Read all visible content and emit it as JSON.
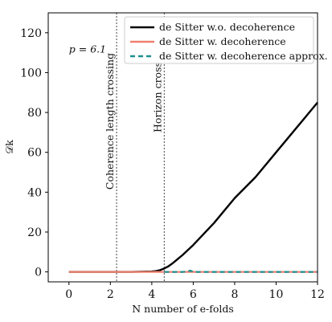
{
  "chart_data": {
    "type": "line",
    "xlabel": "N number of e-folds",
    "ylabel": "𝒟k",
    "xlim": [
      -1,
      12
    ],
    "ylim": [
      -5,
      130
    ],
    "xticks": [
      0,
      2,
      4,
      6,
      8,
      10,
      12
    ],
    "yticks": [
      0,
      20,
      40,
      60,
      80,
      100,
      120
    ],
    "grid": false,
    "legend_position": "top-right",
    "annotations": [
      {
        "text": "p = 6.1",
        "x": 0,
        "y": 110
      }
    ],
    "vertical_lines": [
      {
        "label": "Coherence length crossing",
        "x": 2.3
      },
      {
        "label": "Horizon crossing",
        "x": 4.6
      }
    ],
    "series": [
      {
        "name": "de Sitter w.o. decoherence",
        "color": "#000000",
        "style": "solid",
        "x": [
          0,
          1,
          2,
          3,
          4,
          4.2,
          4.4,
          4.6,
          4.8,
          5.0,
          5.2,
          5.5,
          6,
          7,
          8,
          9,
          10,
          11,
          12
        ],
        "y": [
          0,
          0,
          0,
          0,
          0.2,
          0.4,
          0.9,
          1.7,
          2.8,
          4.3,
          6.0,
          8.6,
          13.5,
          24.5,
          37.0,
          47.5,
          60.0,
          72.5,
          85.0
        ]
      },
      {
        "name": "de Sitter w. decoherence",
        "color": "#f08070",
        "style": "solid",
        "x": [
          0,
          1,
          2,
          3,
          4,
          4.6,
          5,
          6,
          7,
          8,
          9,
          10,
          11,
          12
        ],
        "y": [
          0,
          0,
          0,
          0,
          0,
          0,
          0,
          0,
          0,
          0,
          0,
          0,
          0,
          0
        ]
      },
      {
        "name": "de Sitter w. decoherence approx.",
        "color": "#1f8f8f",
        "style": "dashed",
        "x": [
          4.6,
          5.0,
          5.5,
          5.75,
          5.85,
          6.0,
          7,
          8,
          9,
          10,
          11,
          12
        ],
        "y": [
          0,
          0,
          0,
          0.2,
          0.7,
          0,
          0,
          0,
          0,
          0,
          0,
          0
        ]
      }
    ]
  }
}
